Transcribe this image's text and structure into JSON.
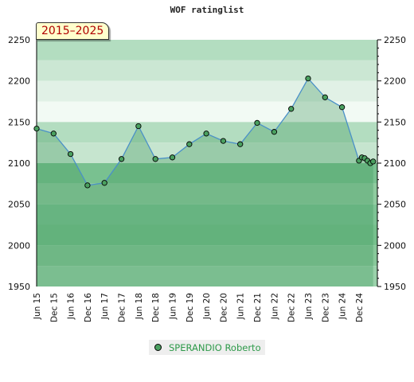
{
  "title": "WOF ratinglist",
  "badge": "2015–2025",
  "legend": {
    "label": "SPERANDIO Roberto"
  },
  "colors": {
    "line": "#4a90c8",
    "marker": "#4aa060",
    "bands": [
      "#b3ddc0",
      "#cbe7d3",
      "#e1f1e6",
      "#f2faf4",
      "#b3ddc0",
      "#c6e5cf",
      "#79c190",
      "#8fcb9f",
      "#7dc394",
      "#76c08c",
      "#88c89a",
      "#9ad1aa"
    ]
  },
  "chart_data": {
    "type": "line",
    "title": "WOF ratinglist",
    "ylim": [
      1950,
      2250
    ],
    "y_ticks": [
      1950,
      2000,
      2050,
      2100,
      2150,
      2200,
      2250
    ],
    "x_tick_labels": [
      "Jun 15",
      "Dec 15",
      "Jun 16",
      "Dec 16",
      "Jun 17",
      "Dec 17",
      "Jun 18",
      "Dec 18",
      "Jun 19",
      "Dec 19",
      "Jun 20",
      "Dec 20",
      "Jun 21",
      "Dec 21",
      "Jun 22",
      "Dec 22",
      "Jun 23",
      "Dec 23",
      "Jun 24",
      "Dec 24"
    ],
    "series": [
      {
        "name": "SPERANDIO Roberto",
        "points": [
          {
            "x": "2015-06",
            "y": 2142
          },
          {
            "x": "2015-12",
            "y": 2136
          },
          {
            "x": "2016-06",
            "y": 2111
          },
          {
            "x": "2016-12",
            "y": 2073
          },
          {
            "x": "2017-06",
            "y": 2076
          },
          {
            "x": "2017-12",
            "y": 2105
          },
          {
            "x": "2018-06",
            "y": 2145
          },
          {
            "x": "2018-12",
            "y": 2105
          },
          {
            "x": "2019-06",
            "y": 2107
          },
          {
            "x": "2019-12",
            "y": 2123
          },
          {
            "x": "2020-06",
            "y": 2136
          },
          {
            "x": "2020-12",
            "y": 2127
          },
          {
            "x": "2021-06",
            "y": 2123
          },
          {
            "x": "2021-12",
            "y": 2149
          },
          {
            "x": "2022-06",
            "y": 2138
          },
          {
            "x": "2022-12",
            "y": 2166
          },
          {
            "x": "2023-06",
            "y": 2203
          },
          {
            "x": "2023-12",
            "y": 2180
          },
          {
            "x": "2024-06",
            "y": 2168
          },
          {
            "x": "2024-12",
            "y": 2103
          },
          {
            "x": "2025-01",
            "y": 2107
          },
          {
            "x": "2025-02",
            "y": 2106
          },
          {
            "x": "2025-03",
            "y": 2103
          },
          {
            "x": "2025-04",
            "y": 2100
          },
          {
            "x": "2025-05",
            "y": 2102
          }
        ]
      }
    ]
  }
}
